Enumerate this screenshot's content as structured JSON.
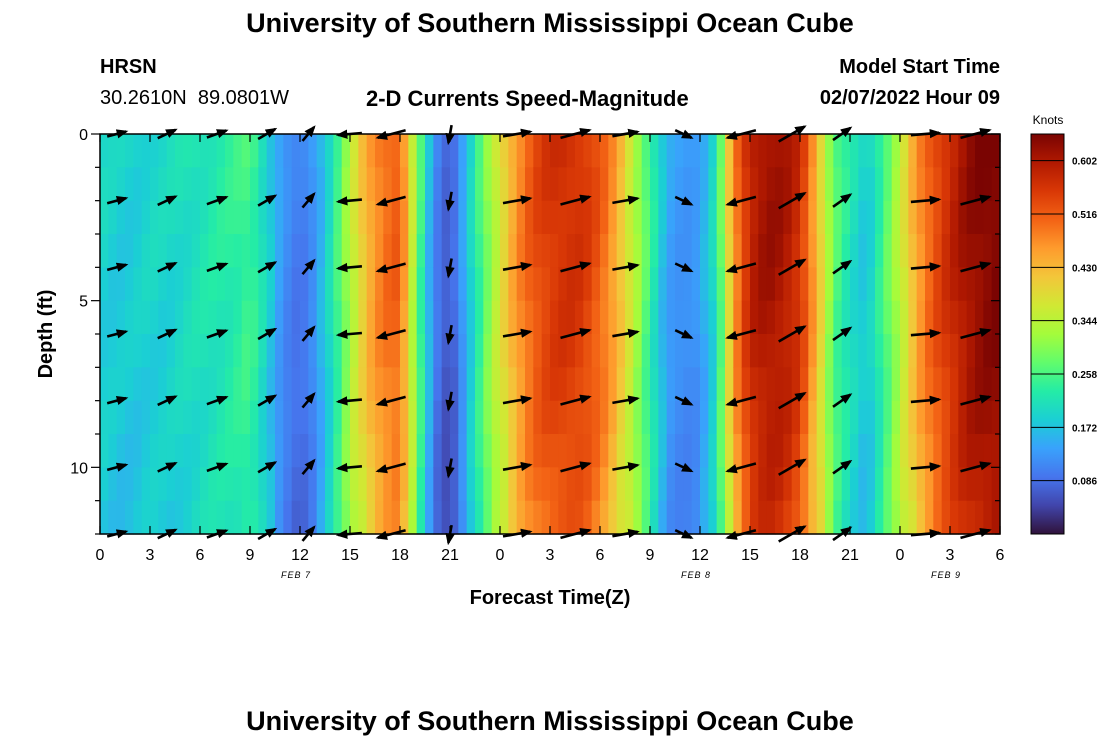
{
  "header": {
    "title": "University of Southern Mississippi Ocean Cube",
    "station_code": "HRSN",
    "station_coords": "30.2610N  89.0801W",
    "plot_title": "2-D Currents Speed-Magnitude",
    "model_start_label": "Model Start Time",
    "model_start_value": "02/07/2022 Hour 09"
  },
  "footer": {
    "title_repeat": "University of Southern Mississippi Ocean Cube"
  },
  "chart_data": {
    "type": "heatmap",
    "title": "2-D Currents Speed-Magnitude",
    "xlabel": "Forecast Time(Z)",
    "ylabel": "Depth (ft)",
    "x_tick_labels": [
      "0",
      "3",
      "6",
      "9",
      "12",
      "15",
      "18",
      "21",
      "0",
      "3",
      "6",
      "9",
      "12",
      "15",
      "18",
      "21",
      "0",
      "3",
      "6"
    ],
    "x_hours_range": [
      0,
      54
    ],
    "date_labels": [
      {
        "hour": 12,
        "text": "FEB 7"
      },
      {
        "hour": 36,
        "text": "FEB 8"
      },
      {
        "hour": 51,
        "text": "FEB 9"
      }
    ],
    "y_ticks": [
      0,
      5,
      10
    ],
    "y_range_ft": [
      0,
      12
    ],
    "y_inverted": true,
    "colorbar": {
      "label": "Knots",
      "ticks": [
        "0.602",
        "0.516",
        "0.430",
        "0.344",
        "0.258",
        "0.172",
        "0.086"
      ],
      "tick_values": [
        0.602,
        0.516,
        0.43,
        0.344,
        0.258,
        0.172,
        0.086
      ],
      "range": [
        0.0,
        0.645
      ],
      "colors": [
        "#30123b",
        "#4145ab",
        "#4675ed",
        "#39a2fc",
        "#1bcfd4",
        "#24eca6",
        "#61fc6c",
        "#a4fc3b",
        "#d1e834",
        "#f3c63a",
        "#fe9b2d",
        "#f36315",
        "#d93806",
        "#b11901",
        "#7a0402"
      ]
    },
    "speed_by_hour_knots": [
      [
        0,
        0.2
      ],
      [
        1,
        0.19
      ],
      [
        2,
        0.19
      ],
      [
        3,
        0.2
      ],
      [
        4,
        0.2
      ],
      [
        5,
        0.21
      ],
      [
        6,
        0.22
      ],
      [
        7,
        0.23
      ],
      [
        8,
        0.24
      ],
      [
        9,
        0.26
      ],
      [
        10,
        0.2
      ],
      [
        11,
        0.13
      ],
      [
        12,
        0.1
      ],
      [
        13,
        0.14
      ],
      [
        14,
        0.23
      ],
      [
        15,
        0.34
      ],
      [
        16,
        0.44
      ],
      [
        17,
        0.5
      ],
      [
        18,
        0.52
      ],
      [
        19,
        0.3
      ],
      [
        20,
        0.12
      ],
      [
        21,
        0.07
      ],
      [
        22,
        0.17
      ],
      [
        23,
        0.28
      ],
      [
        24,
        0.38
      ],
      [
        25,
        0.47
      ],
      [
        26,
        0.53
      ],
      [
        27,
        0.56
      ],
      [
        28,
        0.57
      ],
      [
        29,
        0.56
      ],
      [
        30,
        0.52
      ],
      [
        31,
        0.45
      ],
      [
        32,
        0.35
      ],
      [
        33,
        0.25
      ],
      [
        34,
        0.15
      ],
      [
        35,
        0.13
      ],
      [
        36,
        0.14
      ],
      [
        37,
        0.22
      ],
      [
        38,
        0.47
      ],
      [
        39,
        0.59
      ],
      [
        40,
        0.62
      ],
      [
        41,
        0.61
      ],
      [
        42,
        0.57
      ],
      [
        43,
        0.44
      ],
      [
        44,
        0.28
      ],
      [
        45,
        0.22
      ],
      [
        46,
        0.18
      ],
      [
        47,
        0.26
      ],
      [
        48,
        0.35
      ],
      [
        49,
        0.46
      ],
      [
        50,
        0.53
      ],
      [
        51,
        0.58
      ],
      [
        52,
        0.62
      ],
      [
        53,
        0.64
      ],
      [
        54,
        0.65
      ]
    ],
    "vector_columns_hours": [
      1,
      4,
      7,
      10,
      12.5,
      15,
      17.5,
      21,
      25,
      28.5,
      31.5,
      35,
      38.5,
      41.5,
      44.5,
      49.5,
      52.5
    ],
    "vector_rows_ft": [
      0,
      2,
      4,
      6,
      8,
      10,
      12
    ],
    "vector_direction_deg_by_column": [
      15,
      25,
      20,
      30,
      50,
      185,
      195,
      260,
      10,
      15,
      10,
      335,
      195,
      30,
      35,
      5,
      15
    ]
  }
}
